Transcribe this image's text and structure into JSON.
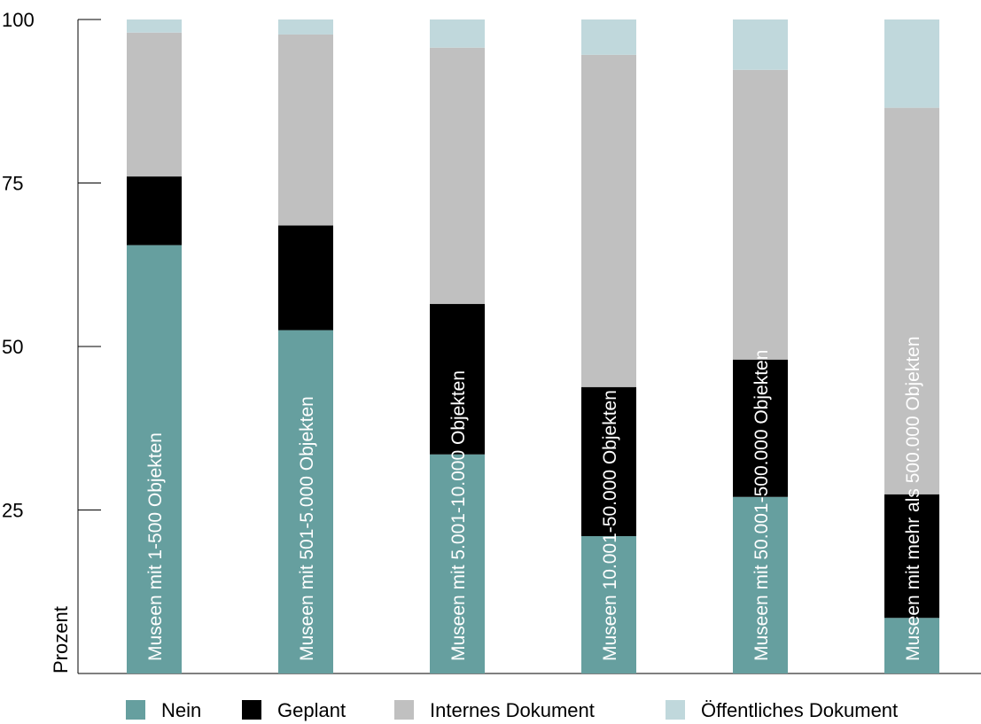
{
  "chart_data": {
    "type": "bar",
    "stacked": true,
    "ylabel": "Prozent",
    "xlabel": "",
    "ylim": [
      0,
      100
    ],
    "yticks": [
      25,
      50,
      75,
      100
    ],
    "grid": false,
    "legend_position": "bottom",
    "categories": [
      "Museen mit 1-500 Objekten",
      "Museen mit 501-5.000 Objekten",
      "Museen mit 5.001-10.000 Objekten",
      "Museen 10.001-50.000 Objekten",
      "Museen mit 50.001-500.000 Objekten",
      "Museen mit mehr als 500.000 Objekten"
    ],
    "series": [
      {
        "name": "Nein",
        "color": "#669f9f",
        "values": [
          65.5,
          52.5,
          33.5,
          21,
          27,
          8.5
        ]
      },
      {
        "name": "Geplant",
        "color": "#000000",
        "values": [
          10.5,
          16,
          23,
          22.8,
          21,
          18.9
        ]
      },
      {
        "name": "Internes Dokument",
        "color": "#c0c0c0",
        "values": [
          22,
          29.2,
          39.2,
          50.8,
          44.3,
          59.1
        ]
      },
      {
        "name": "Öffentliches Dokument",
        "color": "#c0d8dc",
        "values": [
          2,
          2.3,
          4.3,
          5.4,
          7.7,
          13.5
        ]
      }
    ]
  }
}
